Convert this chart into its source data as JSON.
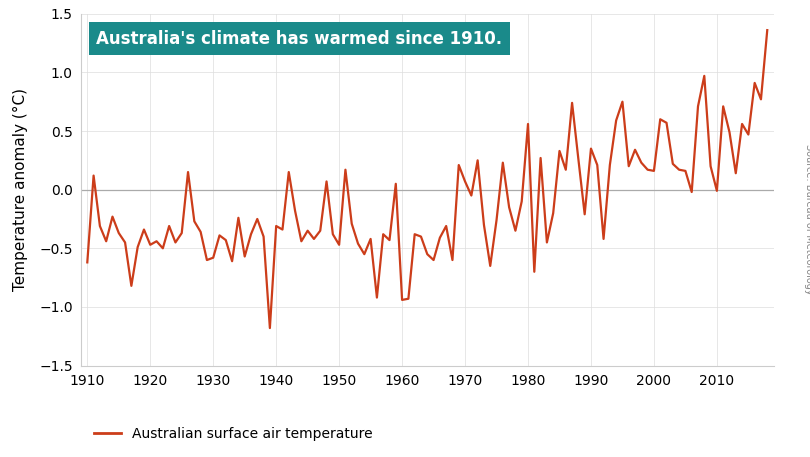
{
  "years": [
    1910,
    1911,
    1912,
    1913,
    1914,
    1915,
    1916,
    1917,
    1918,
    1919,
    1920,
    1921,
    1922,
    1923,
    1924,
    1925,
    1926,
    1927,
    1928,
    1929,
    1930,
    1931,
    1932,
    1933,
    1934,
    1935,
    1936,
    1937,
    1938,
    1939,
    1940,
    1941,
    1942,
    1943,
    1944,
    1945,
    1946,
    1947,
    1948,
    1949,
    1950,
    1951,
    1952,
    1953,
    1954,
    1955,
    1956,
    1957,
    1958,
    1959,
    1960,
    1961,
    1962,
    1963,
    1964,
    1965,
    1966,
    1967,
    1968,
    1969,
    1970,
    1971,
    1972,
    1973,
    1974,
    1975,
    1976,
    1977,
    1978,
    1979,
    1980,
    1981,
    1982,
    1983,
    1984,
    1985,
    1986,
    1987,
    1988,
    1989,
    1990,
    1991,
    1992,
    1993,
    1994,
    1995,
    1996,
    1997,
    1998,
    1999,
    2000,
    2001,
    2002,
    2003,
    2004,
    2005,
    2006,
    2007,
    2008,
    2009,
    2010,
    2011,
    2012,
    2013,
    2014,
    2015,
    2016,
    2017,
    2018
  ],
  "anomalies": [
    -0.62,
    0.12,
    -0.31,
    -0.44,
    -0.23,
    -0.37,
    -0.45,
    -0.82,
    -0.49,
    -0.34,
    -0.47,
    -0.44,
    -0.5,
    -0.31,
    -0.45,
    -0.37,
    0.15,
    -0.27,
    -0.36,
    -0.6,
    -0.58,
    -0.39,
    -0.43,
    -0.61,
    -0.24,
    -0.57,
    -0.38,
    -0.25,
    -0.4,
    -1.18,
    -0.31,
    -0.34,
    0.15,
    -0.18,
    -0.44,
    -0.35,
    -0.42,
    -0.35,
    0.07,
    -0.38,
    -0.47,
    0.17,
    -0.29,
    -0.46,
    -0.55,
    -0.42,
    -0.92,
    -0.38,
    -0.43,
    0.05,
    -0.94,
    -0.93,
    -0.38,
    -0.4,
    -0.55,
    -0.6,
    -0.41,
    -0.31,
    -0.6,
    0.21,
    0.07,
    -0.05,
    0.25,
    -0.3,
    -0.65,
    -0.26,
    0.23,
    -0.15,
    -0.35,
    -0.1,
    0.56,
    -0.7,
    0.27,
    -0.45,
    -0.2,
    0.33,
    0.17,
    0.74,
    0.26,
    -0.21,
    0.35,
    0.21,
    -0.42,
    0.21,
    0.59,
    0.75,
    0.2,
    0.34,
    0.23,
    0.17,
    0.16,
    0.6,
    0.57,
    0.22,
    0.17,
    0.16,
    -0.02,
    0.71,
    0.97,
    0.2,
    -0.01,
    0.71,
    0.49,
    0.14,
    0.56,
    0.47,
    0.91,
    0.77,
    1.36
  ],
  "line_color": "#cc3d1a",
  "line_width": 1.6,
  "ylim": [
    -1.5,
    1.5
  ],
  "xlim": [
    1909,
    2019
  ],
  "yticks": [
    -1.5,
    -1.0,
    -0.5,
    0.0,
    0.5,
    1.0,
    1.5
  ],
  "xticks": [
    1910,
    1920,
    1930,
    1940,
    1950,
    1960,
    1970,
    1980,
    1990,
    2000,
    2010
  ],
  "ylabel": "Temperature anomaly (°C)",
  "annotation_text": "Australia's climate has warmed since 1910.",
  "annotation_bg": "#1a8a8a",
  "annotation_text_color": "#ffffff",
  "source_text": "Source: Bureau of Meteorology",
  "legend_label": "Australian surface air temperature",
  "zero_line_color": "#aaaaaa",
  "bg_color": "#ffffff"
}
